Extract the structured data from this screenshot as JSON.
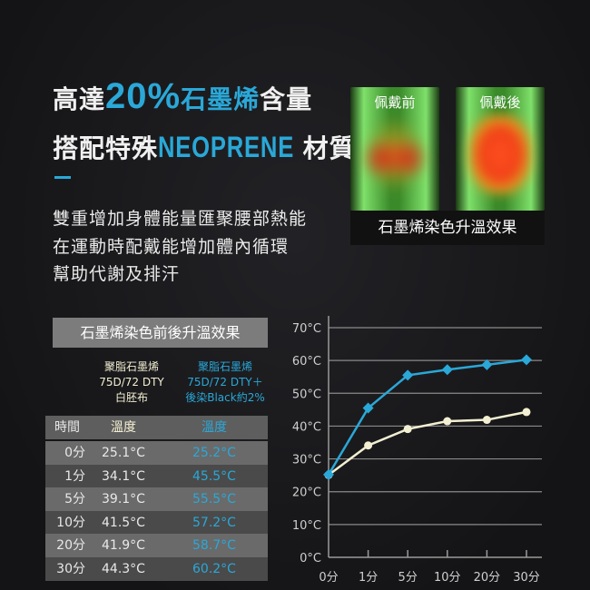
{
  "headline": {
    "line1_pre": "高達",
    "line1_highlight": "20%",
    "line1_blue": "石墨烯",
    "line1_post": "含量",
    "line2_pre": "搭配特殊",
    "line2_highlight": "NEOPRENE",
    "line2_post": "材質"
  },
  "description": [
    "雙重增加身體能量匯聚腰部熱能",
    "在運動時配戴能增加體內循環",
    "幫助代謝及排汗"
  ],
  "thermal": {
    "before_label": "佩戴前",
    "after_label": "佩戴後",
    "caption": "石墨烯染色升溫效果"
  },
  "table": {
    "title": "石墨烯染色前後升溫效果",
    "sample_a": [
      "聚脂石墨烯",
      "75D/72 DTY",
      "白胚布"
    ],
    "sample_b": [
      "聚脂石墨烯",
      "75D/72 DTY＋",
      "後染Black約2%"
    ],
    "headers": [
      "時間",
      "溫度",
      "溫度"
    ],
    "rows": [
      [
        "0分",
        "25.1°C",
        "25.2°C"
      ],
      [
        "1分",
        "34.1°C",
        "45.5°C"
      ],
      [
        "5分",
        "39.1°C",
        "55.5°C"
      ],
      [
        "10分",
        "41.5°C",
        "57.2°C"
      ],
      [
        "20分",
        "41.9°C",
        "58.7°C"
      ],
      [
        "30分",
        "44.3°C",
        "60.2°C"
      ]
    ]
  },
  "colors": {
    "accent": "#2aa8d8",
    "cream": "#f3efd2"
  },
  "chart_data": {
    "type": "line",
    "categories": [
      "0分",
      "1分",
      "5分",
      "10分",
      "20分",
      "30分"
    ],
    "y_ticks": [
      "0°C",
      "10°C",
      "20°C",
      "30°C",
      "40°C",
      "50°C",
      "60°C",
      "70°C"
    ],
    "ylim": [
      0,
      70
    ],
    "grid": true,
    "series": [
      {
        "values": [
          25.1,
          34.1,
          39.1,
          41.5,
          41.9,
          44.3
        ],
        "color": "#f3efd2",
        "marker": "circle"
      },
      {
        "values": [
          25.2,
          45.5,
          55.5,
          57.2,
          58.7,
          60.2
        ],
        "color": "#2aa8d8",
        "marker": "diamond"
      }
    ]
  }
}
